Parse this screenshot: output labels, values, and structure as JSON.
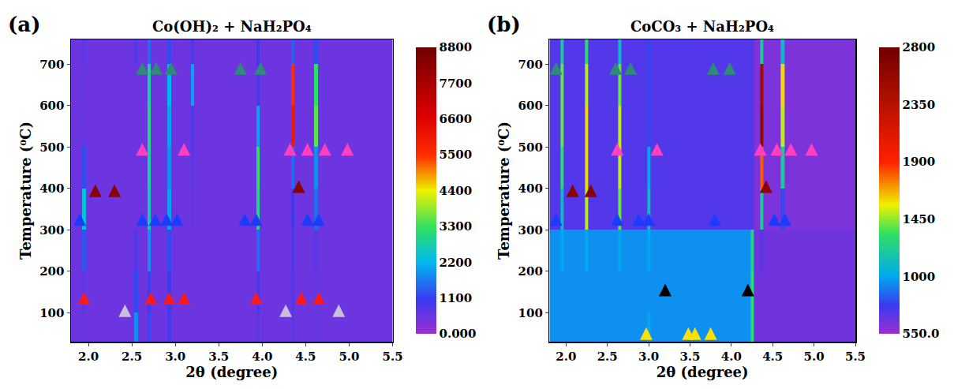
{
  "chart_data": [
    {
      "type": "heatmap",
      "panel_label": "(a)",
      "title": "Co(OH)₂ + NaH₂PO₄",
      "x_label": "2θ (degree)",
      "y_label": "Temperature (⁰C)",
      "xlim": [
        1.8,
        5.5
      ],
      "xticks": [
        {
          "value": 2,
          "label": "2.0"
        },
        2.5,
        {
          "value": 3,
          "label": "3.0"
        },
        3.5,
        {
          "value": 4,
          "label": "4.0"
        },
        4.5,
        {
          "value": 5,
          "label": "5.0"
        },
        5.5
      ],
      "ylim": [
        30,
        760
      ],
      "yticks": [
        100,
        200,
        300,
        400,
        500,
        600,
        700
      ],
      "x_edges": [
        1.8,
        1.93,
        1.97,
        2.53,
        2.57,
        2.68,
        2.72,
        2.91,
        2.95,
        3.18,
        3.22,
        3.93,
        3.97,
        4.33,
        4.37,
        4.6,
        4.64,
        5.5
      ],
      "y_edges": [
        30,
        100,
        200,
        300,
        400,
        500,
        600,
        700,
        760
      ],
      "z": [
        [
          500,
          600,
          500,
          1800,
          500,
          1200,
          500,
          900,
          500,
          500,
          500,
          700,
          500,
          700,
          500,
          600,
          500
        ],
        [
          500,
          700,
          500,
          1200,
          500,
          1100,
          500,
          1000,
          500,
          500,
          500,
          900,
          500,
          800,
          500,
          600,
          500
        ],
        [
          500,
          1300,
          500,
          800,
          500,
          1800,
          500,
          1200,
          500,
          500,
          500,
          1500,
          500,
          900,
          500,
          700,
          500
        ],
        [
          500,
          2400,
          500,
          500,
          500,
          2600,
          500,
          2000,
          500,
          600,
          500,
          3000,
          500,
          1000,
          500,
          1500,
          500
        ],
        [
          500,
          1200,
          500,
          500,
          500,
          2800,
          500,
          1800,
          500,
          700,
          500,
          3200,
          500,
          1500,
          500,
          1800,
          500
        ],
        [
          500,
          600,
          500,
          500,
          500,
          3000,
          500,
          2000,
          500,
          900,
          500,
          2000,
          500,
          6000,
          500,
          3500,
          500
        ],
        [
          500,
          600,
          500,
          500,
          500,
          2800,
          500,
          2200,
          500,
          2000,
          500,
          900,
          500,
          5500,
          500,
          3200,
          500
        ],
        [
          500,
          700,
          500,
          800,
          500,
          1500,
          500,
          1200,
          500,
          900,
          500,
          1000,
          500,
          1400,
          500,
          1200,
          500
        ]
      ],
      "colorbar_range": [
        0,
        8800
      ],
      "colorbar_ticks": [
        {
          "value": 0,
          "label": "0.000"
        },
        1100,
        2200,
        3300,
        4400,
        5500,
        6600,
        7700,
        8800
      ],
      "marker": "arrow-up",
      "arrows": [
        {
          "color": "#ff1a1a",
          "x": [
            1.95,
            2.72,
            2.93,
            3.1,
            3.93,
            4.45,
            4.65
          ],
          "y": [
            150,
            150,
            150,
            150,
            150,
            150,
            150
          ]
        },
        {
          "color": "#c8c0dc",
          "x": [
            2.42,
            4.27,
            4.88
          ],
          "y": [
            120,
            120,
            120
          ]
        },
        {
          "color": "#1a3cff",
          "x": [
            1.9,
            2.62,
            2.77,
            2.9,
            3.02,
            3.8,
            3.93,
            4.52,
            4.65
          ],
          "y": [
            340,
            340,
            340,
            340,
            340,
            340,
            340,
            340,
            340
          ]
        },
        {
          "color": "#8b0000",
          "x": [
            2.08,
            2.3,
            4.42
          ],
          "y": [
            410,
            410,
            420
          ]
        },
        {
          "color": "#ff40c0",
          "x": [
            2.62,
            3.1,
            4.32,
            4.52,
            4.72,
            4.98
          ],
          "y": [
            510,
            510,
            510,
            510,
            510,
            510
          ]
        },
        {
          "color": "#2e8b77",
          "x": [
            2.62,
            2.78,
            2.95,
            3.75,
            3.98
          ],
          "y": [
            705,
            705,
            705,
            705,
            705
          ]
        }
      ]
    },
    {
      "type": "heatmap",
      "panel_label": "(b)",
      "title": "CoCO₃ + NaH₂PO₄",
      "x_label": "2θ (degree)",
      "y_label": "Temperature (⁰C)",
      "xlim": [
        1.8,
        5.5
      ],
      "xticks": [
        {
          "value": 2,
          "label": "2.0"
        },
        2.5,
        {
          "value": 3,
          "label": "3.0"
        },
        3.5,
        {
          "value": 4,
          "label": "4.0"
        },
        4.5,
        {
          "value": 5,
          "label": "5.0"
        },
        5.5
      ],
      "ylim": [
        30,
        760
      ],
      "yticks": [
        100,
        200,
        300,
        400,
        500,
        600,
        700
      ],
      "x_edges": [
        1.8,
        1.93,
        1.97,
        2.23,
        2.27,
        2.63,
        2.67,
        2.98,
        3.02,
        4.23,
        4.27,
        4.35,
        4.39,
        4.6,
        4.64,
        5.5
      ],
      "y_edges": [
        30,
        100,
        200,
        300,
        400,
        500,
        600,
        700,
        760
      ],
      "z": [
        [
          950,
          950,
          950,
          950,
          950,
          950,
          950,
          1000,
          950,
          1300,
          650,
          650,
          650,
          650,
          650
        ],
        [
          950,
          950,
          950,
          950,
          950,
          950,
          950,
          950,
          950,
          1300,
          650,
          650,
          650,
          650,
          650
        ],
        [
          950,
          1000,
          950,
          1000,
          950,
          1000,
          950,
          1000,
          950,
          1250,
          650,
          700,
          650,
          650,
          650
        ],
        [
          720,
          1100,
          720,
          1500,
          720,
          1400,
          720,
          1100,
          720,
          720,
          620,
          1200,
          620,
          800,
          620
        ],
        [
          720,
          1300,
          720,
          1600,
          720,
          1500,
          720,
          1000,
          720,
          720,
          620,
          1800,
          620,
          1200,
          620
        ],
        [
          720,
          1400,
          720,
          1600,
          720,
          1500,
          720,
          800,
          720,
          720,
          620,
          2600,
          620,
          1500,
          620
        ],
        [
          720,
          1400,
          720,
          1500,
          720,
          1400,
          720,
          800,
          720,
          720,
          620,
          2500,
          620,
          1600,
          620
        ],
        [
          720,
          1200,
          720,
          1300,
          720,
          1100,
          720,
          800,
          720,
          720,
          620,
          1200,
          620,
          1100,
          620
        ]
      ],
      "colorbar_range": [
        550,
        2800
      ],
      "colorbar_ticks": [
        {
          "value": 550,
          "label": "550.0"
        },
        1000,
        1450,
        1900,
        2350,
        2800
      ],
      "marker": "arrow-up",
      "arrows": [
        {
          "color": "#ffe000",
          "x": [
            2.97,
            3.48,
            3.56,
            3.75
          ],
          "y": [
            65,
            65,
            65,
            65
          ]
        },
        {
          "color": "#000000",
          "x": [
            3.2,
            4.2
          ],
          "y": [
            170,
            170
          ]
        },
        {
          "color": "#1a3cff",
          "x": [
            1.88,
            2.62,
            2.88,
            3.0,
            3.8,
            4.52,
            4.65
          ],
          "y": [
            340,
            340,
            340,
            340,
            340,
            340,
            340
          ]
        },
        {
          "color": "#8b0000",
          "x": [
            2.08,
            2.3,
            4.42
          ],
          "y": [
            410,
            410,
            420
          ]
        },
        {
          "color": "#ff40c0",
          "x": [
            2.62,
            3.1,
            4.35,
            4.55,
            4.72,
            4.97
          ],
          "y": [
            510,
            510,
            510,
            510,
            510,
            510
          ]
        },
        {
          "color": "#2e8b77",
          "x": [
            1.88,
            2.6,
            2.78,
            3.78,
            3.98
          ],
          "y": [
            705,
            705,
            705,
            705,
            705
          ]
        }
      ]
    }
  ]
}
